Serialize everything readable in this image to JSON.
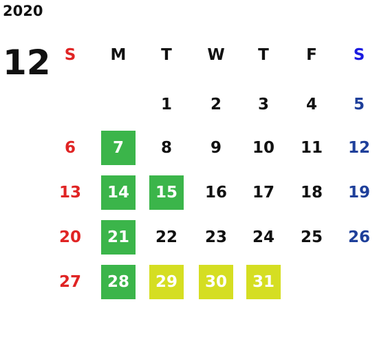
{
  "year": "2020",
  "month": "12",
  "weekdays": [
    "S",
    "M",
    "T",
    "W",
    "T",
    "F",
    "S"
  ],
  "highlight_colors": {
    "green": "#3bb54a",
    "yellow": "#d5de22"
  },
  "weeks": [
    [
      null,
      null,
      {
        "day": "1"
      },
      {
        "day": "2"
      },
      {
        "day": "3"
      },
      {
        "day": "4"
      },
      {
        "day": "5"
      }
    ],
    [
      {
        "day": "6"
      },
      {
        "day": "7",
        "highlight": "green"
      },
      {
        "day": "8"
      },
      {
        "day": "9"
      },
      {
        "day": "10"
      },
      {
        "day": "11"
      },
      {
        "day": "12"
      }
    ],
    [
      {
        "day": "13"
      },
      {
        "day": "14",
        "highlight": "green"
      },
      {
        "day": "15",
        "highlight": "green"
      },
      {
        "day": "16"
      },
      {
        "day": "17"
      },
      {
        "day": "18"
      },
      {
        "day": "19"
      }
    ],
    [
      {
        "day": "20"
      },
      {
        "day": "21",
        "highlight": "green"
      },
      {
        "day": "22"
      },
      {
        "day": "23"
      },
      {
        "day": "24"
      },
      {
        "day": "25"
      },
      {
        "day": "26"
      }
    ],
    [
      {
        "day": "27"
      },
      {
        "day": "28",
        "highlight": "green"
      },
      {
        "day": "29",
        "highlight": "yellow"
      },
      {
        "day": "30",
        "highlight": "yellow"
      },
      {
        "day": "31",
        "highlight": "yellow"
      }
    ]
  ]
}
